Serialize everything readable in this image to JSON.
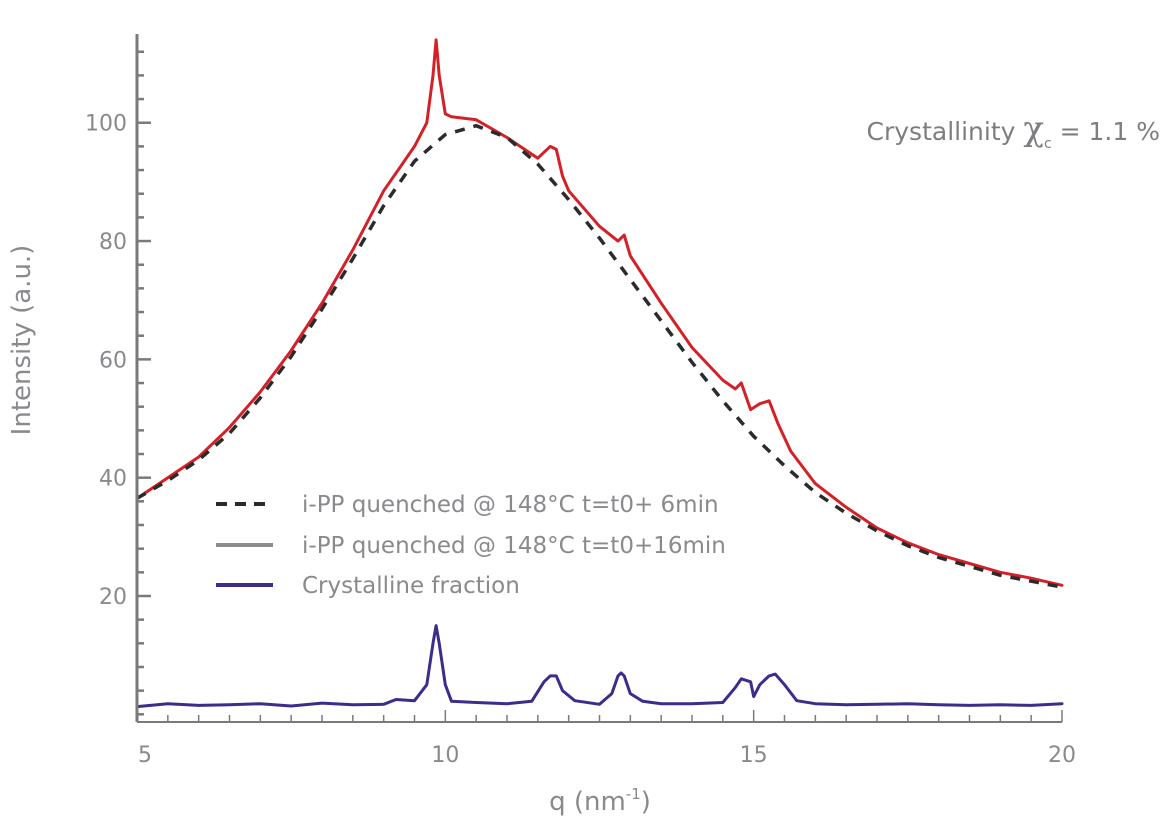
{
  "chart_data": {
    "type": "line",
    "title": "",
    "xlabel": "q (nm",
    "xlabel_sup": "-1",
    "xlabel_end": ")",
    "ylabel": "Intensity (a.u.)",
    "xlim": [
      5,
      20
    ],
    "ylim": [
      -1.3,
      115
    ],
    "x_ticks": [
      5,
      10,
      15,
      20
    ],
    "y_ticks": [
      20,
      40,
      60,
      80,
      100
    ],
    "x_minor_step": 0.5,
    "y_minor_step": 4,
    "grid": false,
    "legend_position": "center-left",
    "annotation": {
      "prefix": "Crystallinity ",
      "symbol": "χ",
      "subscript": "c",
      "suffix": " = 1.1 %"
    },
    "series": [
      {
        "name": "i-PP quenched @ 148°C t=t0+ 6min",
        "color": "#2b2b2b",
        "style": "dashed",
        "x": [
          5.0,
          5.5,
          6.0,
          6.5,
          7.0,
          7.5,
          8.0,
          8.5,
          9.0,
          9.5,
          10.0,
          10.5,
          11.0,
          11.5,
          12.0,
          12.5,
          13.0,
          13.5,
          14.0,
          14.5,
          15.0,
          15.5,
          16.0,
          16.5,
          17.0,
          17.5,
          18.0,
          18.5,
          19.0,
          19.5,
          20.0
        ],
        "values": [
          36.5,
          39.5,
          43.0,
          47.5,
          53.5,
          60.5,
          68.5,
          77.0,
          86.0,
          93.5,
          98.0,
          99.5,
          97.5,
          93.0,
          87.0,
          80.5,
          73.5,
          66.5,
          59.5,
          53.0,
          47.0,
          42.0,
          37.5,
          34.0,
          31.0,
          28.5,
          26.5,
          25.0,
          23.5,
          22.5,
          21.5
        ]
      },
      {
        "name": "i-PP quenched @ 148°C t=t0+16min",
        "color": "#d42027",
        "legend_color": "#8c8c8c",
        "style": "solid",
        "x": [
          5.0,
          5.5,
          6.0,
          6.5,
          7.0,
          7.5,
          8.0,
          8.5,
          9.0,
          9.5,
          9.7,
          9.8,
          9.85,
          9.9,
          10.0,
          10.1,
          10.5,
          11.0,
          11.5,
          11.7,
          11.8,
          11.9,
          12.0,
          12.5,
          12.8,
          12.9,
          13.0,
          13.5,
          14.0,
          14.5,
          14.7,
          14.8,
          14.95,
          15.1,
          15.25,
          15.4,
          15.6,
          16.0,
          16.5,
          17.0,
          17.5,
          18.0,
          18.5,
          19.0,
          19.5,
          20.0
        ],
        "values": [
          36.5,
          40.0,
          43.5,
          48.5,
          54.5,
          61.5,
          69.5,
          78.5,
          88.5,
          96.0,
          100.0,
          108.0,
          114.0,
          108.0,
          101.5,
          101.0,
          100.5,
          97.5,
          94.0,
          96.0,
          95.5,
          91.0,
          88.5,
          82.5,
          80.0,
          81.0,
          77.5,
          69.5,
          62.0,
          56.5,
          55.0,
          56.0,
          51.5,
          52.5,
          53.0,
          49.0,
          44.5,
          39.0,
          35.0,
          31.5,
          29.0,
          27.0,
          25.5,
          24.0,
          23.0,
          21.8
        ]
      },
      {
        "name": "Crystalline fraction",
        "color": "#3a2d8c",
        "style": "solid",
        "x": [
          5.0,
          5.5,
          6.0,
          6.5,
          7.0,
          7.5,
          8.0,
          8.5,
          9.0,
          9.2,
          9.5,
          9.7,
          9.8,
          9.85,
          9.9,
          10.0,
          10.1,
          10.5,
          11.0,
          11.4,
          11.6,
          11.7,
          11.8,
          11.9,
          12.1,
          12.5,
          12.7,
          12.8,
          12.85,
          12.9,
          13.0,
          13.2,
          13.5,
          14.0,
          14.5,
          14.7,
          14.8,
          14.95,
          15.0,
          15.1,
          15.25,
          15.35,
          15.5,
          15.7,
          16.0,
          16.5,
          17.0,
          17.5,
          18.0,
          18.5,
          19.0,
          19.5,
          20.0
        ],
        "values": [
          1.3,
          1.8,
          1.5,
          1.6,
          1.8,
          1.4,
          1.9,
          1.6,
          1.7,
          2.5,
          2.3,
          5.0,
          12.0,
          15.0,
          12.0,
          5.0,
          2.2,
          2.0,
          1.8,
          2.2,
          5.5,
          6.5,
          6.5,
          4.0,
          2.3,
          1.7,
          3.5,
          6.5,
          7.0,
          6.5,
          3.5,
          2.2,
          1.8,
          1.8,
          2.0,
          4.5,
          6.0,
          5.5,
          3.0,
          5.0,
          6.5,
          6.8,
          5.0,
          2.3,
          1.8,
          1.6,
          1.7,
          1.8,
          1.6,
          1.5,
          1.6,
          1.5,
          1.8
        ]
      }
    ]
  }
}
